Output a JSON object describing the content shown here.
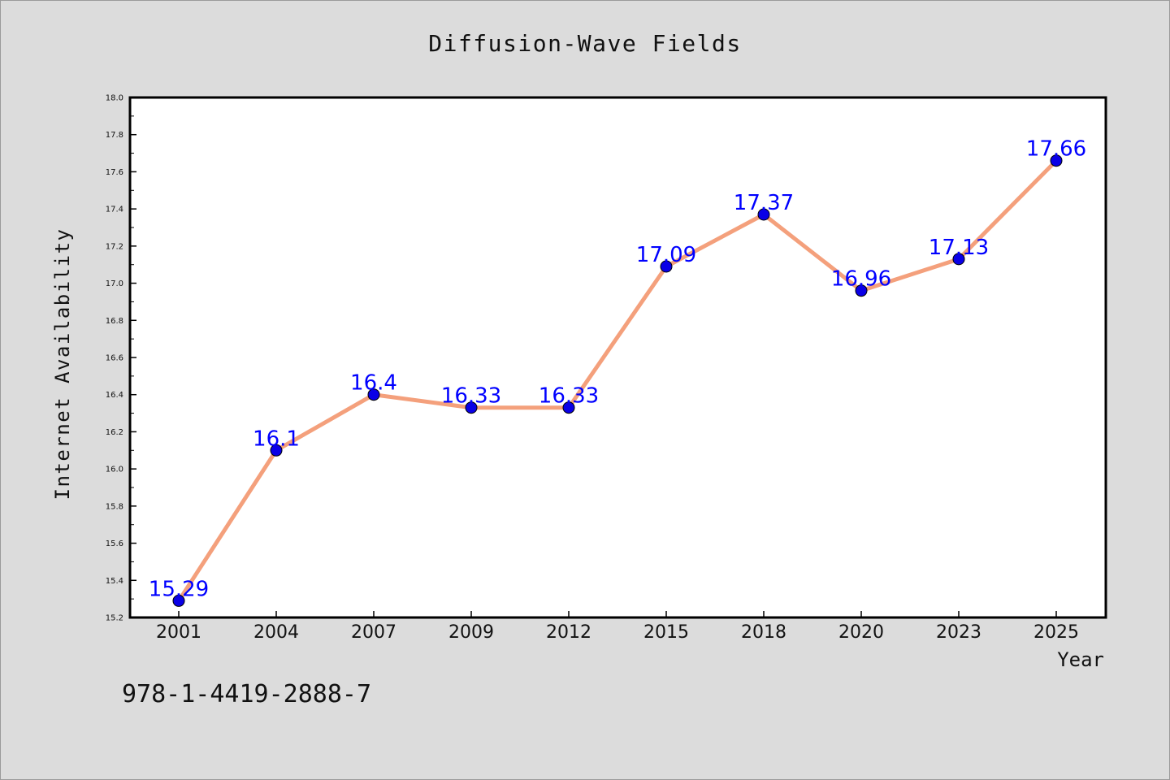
{
  "chart_data": {
    "type": "line",
    "title": "Diffusion-Wave Fields",
    "xlabel": "Year",
    "ylabel": "Internet Availability",
    "categories": [
      "2001",
      "2004",
      "2007",
      "2009",
      "2012",
      "2015",
      "2018",
      "2020",
      "2023",
      "2025"
    ],
    "values": [
      15.29,
      16.1,
      16.4,
      16.33,
      16.33,
      17.09,
      17.37,
      16.96,
      17.13,
      17.66
    ],
    "data_labels": [
      "15.29",
      "16.1",
      "16.4",
      "16.33",
      "16.33",
      "17.09",
      "17.37",
      "16.96",
      "17.13",
      "17.66"
    ],
    "ylim": [
      15.2,
      18.0
    ],
    "yticks": [
      "15.2",
      "15.4",
      "15.6",
      "15.8",
      "16.0",
      "16.2",
      "16.4",
      "16.6",
      "16.8",
      "17.0",
      "17.2",
      "17.4",
      "17.6",
      "17.8",
      "18.0"
    ],
    "grid": false,
    "line_color": "#f4a07c",
    "marker_color": "#0a00e6",
    "label_color": "#0000ff"
  },
  "footer": {
    "isbn": "978-1-4419-2888-7"
  }
}
